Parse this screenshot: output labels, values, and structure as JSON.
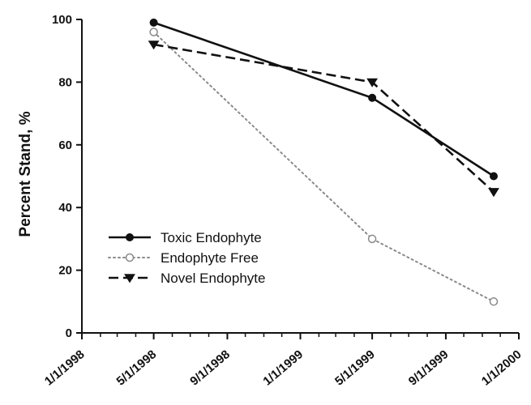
{
  "chart_data": {
    "type": "line",
    "xlabel": "",
    "ylabel": "Percent Stand, %",
    "ylim": [
      0,
      100
    ],
    "xlim": [
      "1998-01-01",
      "2000-01-01"
    ],
    "grid": false,
    "legend_position": "bottom-left",
    "y_ticks": [
      0,
      20,
      40,
      60,
      80,
      100
    ],
    "x_ticks": [
      {
        "value": "1998-01-01",
        "label": "1/1/1998"
      },
      {
        "value": "1998-05-01",
        "label": "5/1/1998"
      },
      {
        "value": "1998-09-01",
        "label": "9/1/1998"
      },
      {
        "value": "1999-01-01",
        "label": "1/1/1999"
      },
      {
        "value": "1999-05-01",
        "label": "5/1/1999"
      },
      {
        "value": "1999-09-01",
        "label": "9/1/1999"
      },
      {
        "value": "2000-01-01",
        "label": "1/1/2000"
      }
    ],
    "series": [
      {
        "name": "Toxic Endophyte",
        "line_style": "solid",
        "marker": "filled-circle",
        "color": "#111111",
        "x": [
          "1998-05-01",
          "1999-05-01",
          "1999-11-20"
        ],
        "y": [
          99,
          75,
          50
        ]
      },
      {
        "name": "Endophyte Free",
        "line_style": "dotted",
        "marker": "open-circle",
        "color": "#8a8a8a",
        "x": [
          "1998-05-01",
          "1999-05-01",
          "1999-11-20"
        ],
        "y": [
          96,
          30,
          10
        ]
      },
      {
        "name": "Novel Endophyte",
        "line_style": "dashed",
        "marker": "filled-triangle-down",
        "color": "#111111",
        "x": [
          "1998-05-01",
          "1999-05-01",
          "1999-11-20"
        ],
        "y": [
          92,
          80,
          45
        ]
      }
    ]
  }
}
